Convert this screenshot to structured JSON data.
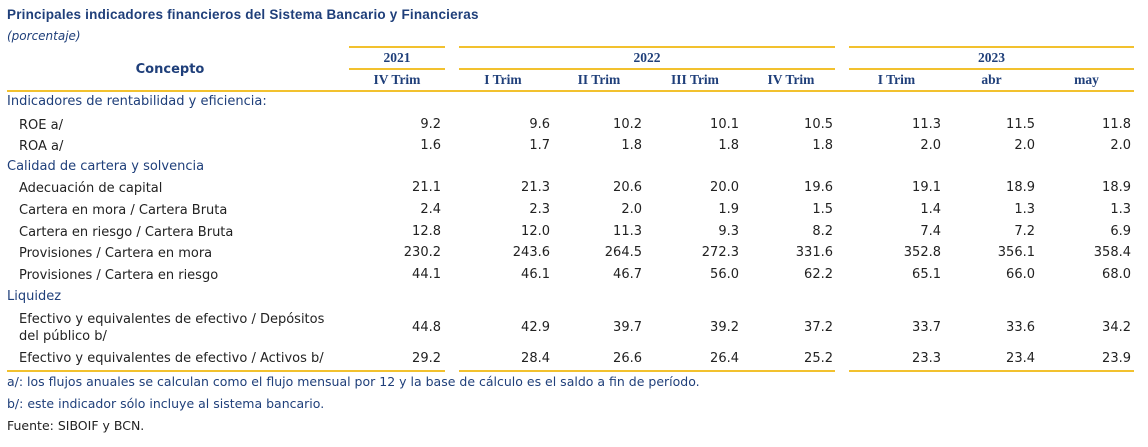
{
  "title": "Principales indicadores financieros del Sistema Bancario y Financieras",
  "subtitle": "(porcentaje)",
  "header": {
    "concept": "Concepto",
    "years": [
      "2021",
      "2022",
      "2023"
    ],
    "periods": [
      "IV Trim",
      "I Trim",
      "II Trim",
      "III Trim",
      "IV Trim",
      "I Trim",
      "abr",
      "may"
    ]
  },
  "rows": [
    {
      "type": "section",
      "label": "Indicadores de rentabilidad y eficiencia:"
    },
    {
      "type": "data",
      "label": "ROE a/",
      "values": [
        "9.2",
        "9.6",
        "10.2",
        "10.1",
        "10.5",
        "11.3",
        "11.5",
        "11.8"
      ]
    },
    {
      "type": "data",
      "label": "ROA a/",
      "values": [
        "1.6",
        "1.7",
        "1.8",
        "1.8",
        "1.8",
        "2.0",
        "2.0",
        "2.0"
      ]
    },
    {
      "type": "section",
      "label": "Calidad de cartera y solvencia"
    },
    {
      "type": "data",
      "label": "Adecuación de capital",
      "values": [
        "21.1",
        "21.3",
        "20.6",
        "20.0",
        "19.6",
        "19.1",
        "18.9",
        "18.9"
      ]
    },
    {
      "type": "data",
      "label": "Cartera en mora / Cartera Bruta",
      "values": [
        "2.4",
        "2.3",
        "2.0",
        "1.9",
        "1.5",
        "1.4",
        "1.3",
        "1.3"
      ]
    },
    {
      "type": "data",
      "label": "Cartera en riesgo / Cartera Bruta",
      "values": [
        "12.8",
        "12.0",
        "11.3",
        "9.3",
        "8.2",
        "7.4",
        "7.2",
        "6.9"
      ]
    },
    {
      "type": "data",
      "label": "Provisiones / Cartera en mora",
      "values": [
        "230.2",
        "243.6",
        "264.5",
        "272.3",
        "331.6",
        "352.8",
        "356.1",
        "358.4"
      ]
    },
    {
      "type": "data",
      "label": "Provisiones / Cartera en riesgo",
      "values": [
        "44.1",
        "46.1",
        "46.7",
        "56.0",
        "62.2",
        "65.1",
        "66.0",
        "68.0"
      ]
    },
    {
      "type": "section",
      "label": "Liquidez"
    },
    {
      "type": "data",
      "label": "Efectivo y equivalentes de efectivo / Depósitos del público b/",
      "values": [
        "44.8",
        "42.9",
        "39.7",
        "39.2",
        "37.2",
        "33.7",
        "33.6",
        "34.2"
      ]
    },
    {
      "type": "data",
      "label": "Efectivo y equivalentes de efectivo / Activos b/",
      "values": [
        "29.2",
        "28.4",
        "26.6",
        "26.4",
        "25.2",
        "23.3",
        "23.4",
        "23.9"
      ]
    }
  ],
  "notes": [
    "a/: los flujos anuales se calculan como el flujo mensual por 12 y la base de cálculo es el saldo a fin de período.",
    "b/: este indicador sólo incluye al sistema bancario."
  ],
  "source": "Fuente: SIBOIF y BCN.",
  "colors": {
    "accent": "#f2c12e",
    "title": "#1f3f7a",
    "text": "#222222"
  }
}
